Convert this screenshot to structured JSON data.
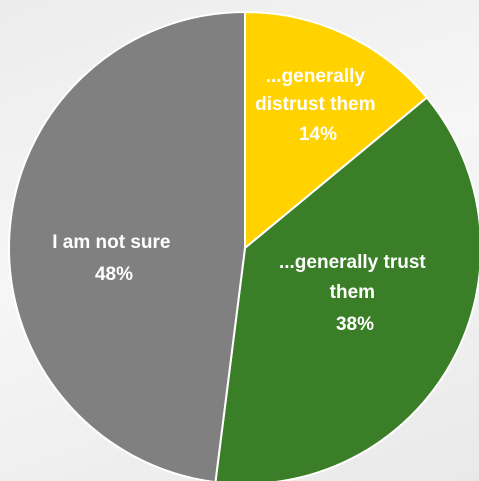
{
  "chart_data": {
    "type": "pie",
    "slices": [
      {
        "label_lines": [
          "...generally",
          "distrust them"
        ],
        "value_text": "14%",
        "value": 14,
        "color": "#FFD200"
      },
      {
        "label_lines": [
          "...generally trust",
          "them"
        ],
        "value_text": "38%",
        "value": 38,
        "color": "#3A7F28"
      },
      {
        "label_lines": [
          "I am not sure"
        ],
        "value_text": "48%",
        "value": 48,
        "color": "#808080"
      }
    ],
    "start_angle_deg": 0,
    "direction": "clockwise",
    "legend": "none",
    "labels_inside": true
  }
}
